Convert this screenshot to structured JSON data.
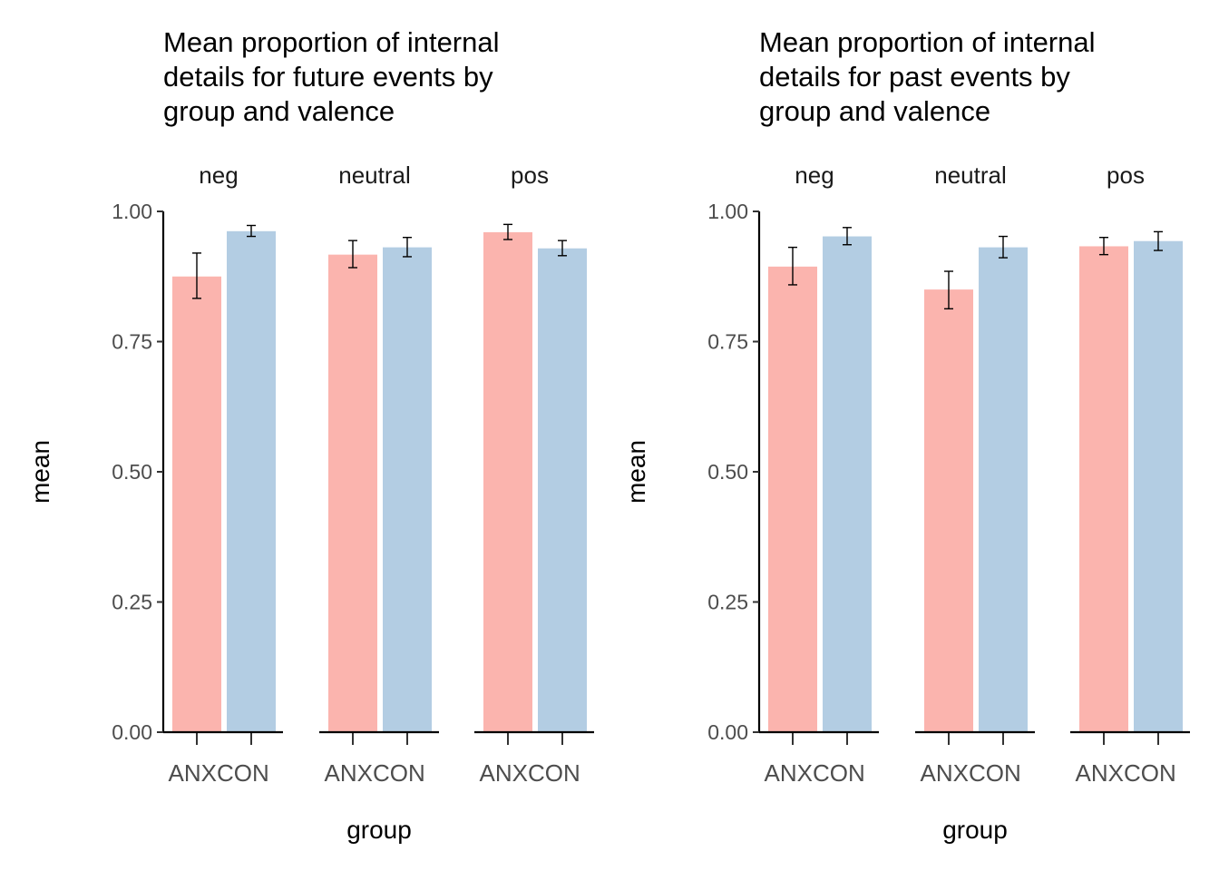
{
  "colors": {
    "ANX": "#FBB4AE",
    "CON": "#B3CDE3"
  },
  "chart_data": [
    {
      "type": "bar",
      "title_lines": [
        "Mean proportion of internal",
        "details for future events by",
        "group and valence"
      ],
      "xlabel": "group",
      "ylabel": "mean",
      "ylim": [
        0,
        1
      ],
      "y_ticks": [
        "0.00",
        "0.25",
        "0.50",
        "0.75",
        "1.00"
      ],
      "facets": [
        {
          "label": "neg",
          "categories": [
            "ANX",
            "CON"
          ],
          "values": [
            0.875,
            0.962
          ],
          "err_low": [
            0.833,
            0.952
          ],
          "err_high": [
            0.92,
            0.973
          ]
        },
        {
          "label": "neutral",
          "categories": [
            "ANX",
            "CON"
          ],
          "values": [
            0.917,
            0.931
          ],
          "err_low": [
            0.892,
            0.913
          ],
          "err_high": [
            0.944,
            0.95
          ]
        },
        {
          "label": "pos",
          "categories": [
            "ANX",
            "CON"
          ],
          "values": [
            0.96,
            0.929
          ],
          "err_low": [
            0.946,
            0.915
          ],
          "err_high": [
            0.975,
            0.944
          ]
        }
      ]
    },
    {
      "type": "bar",
      "title_lines": [
        "Mean proportion of internal",
        "details for past events by",
        "group and valence"
      ],
      "xlabel": "group",
      "ylabel": "mean",
      "ylim": [
        0,
        1
      ],
      "y_ticks": [
        "0.00",
        "0.25",
        "0.50",
        "0.75",
        "1.00"
      ],
      "facets": [
        {
          "label": "neg",
          "categories": [
            "ANX",
            "CON"
          ],
          "values": [
            0.894,
            0.952
          ],
          "err_low": [
            0.859,
            0.936
          ],
          "err_high": [
            0.931,
            0.969
          ]
        },
        {
          "label": "neutral",
          "categories": [
            "ANX",
            "CON"
          ],
          "values": [
            0.85,
            0.931
          ],
          "err_low": [
            0.813,
            0.911
          ],
          "err_high": [
            0.885,
            0.952
          ]
        },
        {
          "label": "pos",
          "categories": [
            "ANX",
            "CON"
          ],
          "values": [
            0.933,
            0.943
          ],
          "err_low": [
            0.917,
            0.925
          ],
          "err_high": [
            0.95,
            0.961
          ]
        }
      ]
    }
  ]
}
